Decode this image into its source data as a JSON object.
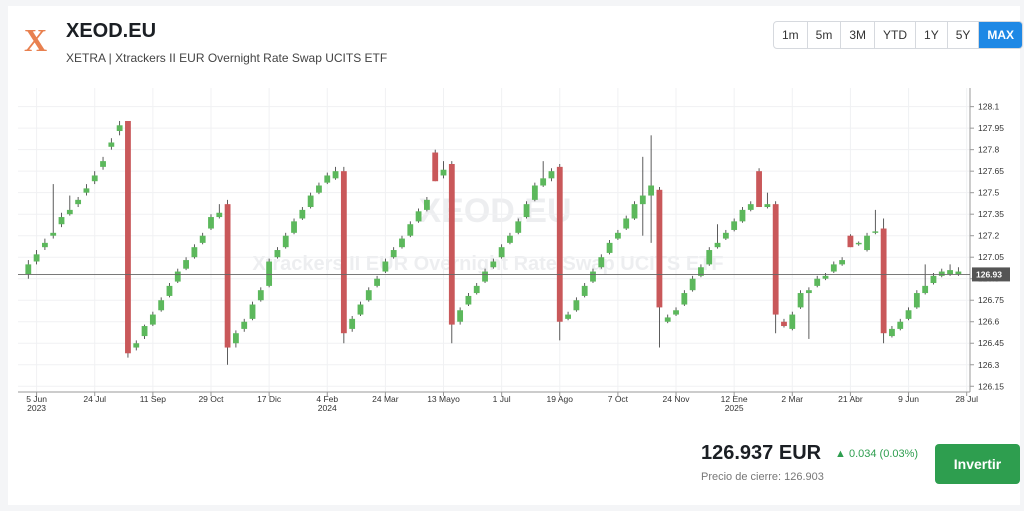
{
  "header": {
    "logo": "X",
    "ticker": "XEOD.EU",
    "exchange_line": "XETRA | Xtrackers II EUR Overnight Rate Swap UCITS ETF",
    "ranges": [
      "1m",
      "5m",
      "3M",
      "YTD",
      "1Y",
      "5Y",
      "MAX"
    ],
    "active_range": 6
  },
  "chart_data": {
    "type": "candlestick",
    "watermark_title": "XEOD.EU",
    "watermark_subtitle": "Xtrackers II EUR Overnight Rate Swap UCITS ETF",
    "up_color": "#5cb85c",
    "down_color": "#c9585a",
    "grid": true,
    "last_price": 126.93,
    "ylim": [
      126.11,
      128.23
    ],
    "yticks": [
      126.15,
      126.3,
      126.45,
      126.6,
      126.75,
      126.9,
      127.05,
      127.2,
      127.35,
      127.5,
      127.65,
      127.8,
      127.95,
      128.1
    ],
    "xlim": [
      -1.24,
      113.4
    ],
    "xticks": [
      {
        "value": 1,
        "label": "5 Jun",
        "year": "2023"
      },
      {
        "value": 8,
        "label": "24 Jul"
      },
      {
        "value": 15,
        "label": "11 Sep"
      },
      {
        "value": 22,
        "label": "29 Oct"
      },
      {
        "value": 29,
        "label": "17 Dic"
      },
      {
        "value": 36,
        "label": "4 Feb",
        "year": "2024"
      },
      {
        "value": 43,
        "label": "24 Mar"
      },
      {
        "value": 50,
        "label": "13 Mayo"
      },
      {
        "value": 57,
        "label": "1 Jul"
      },
      {
        "value": 64,
        "label": "19 Ago"
      },
      {
        "value": 71,
        "label": "7 Oct"
      },
      {
        "value": 78,
        "label": "24 Nov"
      },
      {
        "value": 85,
        "label": "12 Ene",
        "year": "2025"
      },
      {
        "value": 92,
        "label": "2 Mar"
      },
      {
        "value": 99,
        "label": "21 Abr"
      },
      {
        "value": 106,
        "label": "9 Jun"
      },
      {
        "value": 113,
        "label": "28 Jul"
      }
    ],
    "candles": [
      [
        126.93,
        127.03,
        126.9,
        127.0
      ],
      [
        127.02,
        127.1,
        127.0,
        127.07
      ],
      [
        127.12,
        127.18,
        127.1,
        127.15
      ],
      [
        127.2,
        127.56,
        127.18,
        127.22
      ],
      [
        127.28,
        127.36,
        127.26,
        127.33
      ],
      [
        127.35,
        127.48,
        127.34,
        127.38
      ],
      [
        127.42,
        127.47,
        127.4,
        127.45
      ],
      [
        127.5,
        127.56,
        127.48,
        127.53
      ],
      [
        127.58,
        127.65,
        127.56,
        127.62
      ],
      [
        127.68,
        127.75,
        127.66,
        127.72
      ],
      [
        127.82,
        127.88,
        127.8,
        127.85
      ],
      [
        127.93,
        128.0,
        127.9,
        127.97
      ],
      [
        128.0,
        128.0,
        126.35,
        126.38
      ],
      [
        126.42,
        126.47,
        126.4,
        126.45
      ],
      [
        126.5,
        126.58,
        126.48,
        126.57
      ],
      [
        126.58,
        126.67,
        126.57,
        126.65
      ],
      [
        126.68,
        126.77,
        126.67,
        126.75
      ],
      [
        126.78,
        126.87,
        126.77,
        126.85
      ],
      [
        126.88,
        126.97,
        126.87,
        126.95
      ],
      [
        126.97,
        127.05,
        126.96,
        127.03
      ],
      [
        127.05,
        127.14,
        127.04,
        127.12
      ],
      [
        127.15,
        127.22,
        127.14,
        127.2
      ],
      [
        127.25,
        127.35,
        127.24,
        127.33
      ],
      [
        127.33,
        127.42,
        127.32,
        127.36
      ],
      [
        127.42,
        127.45,
        126.3,
        126.42
      ],
      [
        126.45,
        126.54,
        126.42,
        126.52
      ],
      [
        126.55,
        126.62,
        126.53,
        126.6
      ],
      [
        126.62,
        126.74,
        126.61,
        126.72
      ],
      [
        126.75,
        126.84,
        126.74,
        126.82
      ],
      [
        126.85,
        127.04,
        126.84,
        127.02
      ],
      [
        127.05,
        127.12,
        127.04,
        127.1
      ],
      [
        127.12,
        127.22,
        127.11,
        127.2
      ],
      [
        127.22,
        127.32,
        127.21,
        127.3
      ],
      [
        127.32,
        127.4,
        127.31,
        127.38
      ],
      [
        127.4,
        127.5,
        127.39,
        127.48
      ],
      [
        127.5,
        127.57,
        127.49,
        127.55
      ],
      [
        127.57,
        127.64,
        127.56,
        127.62
      ],
      [
        127.6,
        127.68,
        127.59,
        127.65
      ],
      [
        127.65,
        127.68,
        126.45,
        126.52
      ],
      [
        126.55,
        126.64,
        126.53,
        126.62
      ],
      [
        126.65,
        126.74,
        126.64,
        126.72
      ],
      [
        126.75,
        126.84,
        126.74,
        126.82
      ],
      [
        126.85,
        126.92,
        126.84,
        126.9
      ],
      [
        126.95,
        127.04,
        126.94,
        127.02
      ],
      [
        127.05,
        127.12,
        127.04,
        127.1
      ],
      [
        127.12,
        127.2,
        127.11,
        127.18
      ],
      [
        127.2,
        127.3,
        127.19,
        127.28
      ],
      [
        127.3,
        127.39,
        127.29,
        127.37
      ],
      [
        127.38,
        127.47,
        127.37,
        127.45
      ],
      [
        127.78,
        127.8,
        127.58,
        127.58
      ],
      [
        127.62,
        127.72,
        127.6,
        127.66
      ],
      [
        127.7,
        127.72,
        126.45,
        126.58
      ],
      [
        126.6,
        126.7,
        126.58,
        126.68
      ],
      [
        126.72,
        126.8,
        126.71,
        126.78
      ],
      [
        126.8,
        126.87,
        126.79,
        126.85
      ],
      [
        126.88,
        126.97,
        126.87,
        126.95
      ],
      [
        126.98,
        127.04,
        126.97,
        127.02
      ],
      [
        127.05,
        127.14,
        127.04,
        127.12
      ],
      [
        127.15,
        127.22,
        127.14,
        127.2
      ],
      [
        127.22,
        127.32,
        127.21,
        127.3
      ],
      [
        127.33,
        127.44,
        127.32,
        127.42
      ],
      [
        127.45,
        127.57,
        127.44,
        127.55
      ],
      [
        127.55,
        127.72,
        127.54,
        127.6
      ],
      [
        127.6,
        127.67,
        127.58,
        127.65
      ],
      [
        127.68,
        127.7,
        126.47,
        126.6
      ],
      [
        126.62,
        126.67,
        126.61,
        126.65
      ],
      [
        126.68,
        126.77,
        126.67,
        126.75
      ],
      [
        126.78,
        126.87,
        126.77,
        126.85
      ],
      [
        126.88,
        126.97,
        126.87,
        126.95
      ],
      [
        126.98,
        127.07,
        126.97,
        127.05
      ],
      [
        127.08,
        127.17,
        127.07,
        127.15
      ],
      [
        127.18,
        127.24,
        127.17,
        127.22
      ],
      [
        127.25,
        127.34,
        127.24,
        127.32
      ],
      [
        127.32,
        127.44,
        127.31,
        127.42
      ],
      [
        127.42,
        127.75,
        127.2,
        127.48
      ],
      [
        127.48,
        127.9,
        127.15,
        127.55
      ],
      [
        127.52,
        127.54,
        126.42,
        126.7
      ],
      [
        126.6,
        126.65,
        126.59,
        126.63
      ],
      [
        126.65,
        126.7,
        126.64,
        126.68
      ],
      [
        126.72,
        126.82,
        126.71,
        126.8
      ],
      [
        126.82,
        126.92,
        126.81,
        126.9
      ],
      [
        126.92,
        127.0,
        126.91,
        126.98
      ],
      [
        127.0,
        127.12,
        126.99,
        127.1
      ],
      [
        127.12,
        127.28,
        127.11,
        127.15
      ],
      [
        127.18,
        127.24,
        127.17,
        127.22
      ],
      [
        127.24,
        127.32,
        127.23,
        127.3
      ],
      [
        127.3,
        127.4,
        127.29,
        127.38
      ],
      [
        127.38,
        127.44,
        127.37,
        127.42
      ],
      [
        127.65,
        127.67,
        127.4,
        127.4
      ],
      [
        127.4,
        127.5,
        127.39,
        127.42
      ],
      [
        127.42,
        127.44,
        126.52,
        126.65
      ],
      [
        126.6,
        126.62,
        126.56,
        126.57
      ],
      [
        126.55,
        126.67,
        126.54,
        126.65
      ],
      [
        126.7,
        126.82,
        126.69,
        126.8
      ],
      [
        126.8,
        126.84,
        126.48,
        126.82
      ],
      [
        126.85,
        126.92,
        126.84,
        126.9
      ],
      [
        126.9,
        126.94,
        126.89,
        126.92
      ],
      [
        126.95,
        127.02,
        126.94,
        127.0
      ],
      [
        127.0,
        127.05,
        126.99,
        127.03
      ],
      [
        127.2,
        127.21,
        127.12,
        127.12
      ],
      [
        127.14,
        127.16,
        127.13,
        127.15
      ],
      [
        127.1,
        127.22,
        127.09,
        127.2
      ],
      [
        127.22,
        127.38,
        127.21,
        127.23
      ],
      [
        127.25,
        127.32,
        126.45,
        126.52
      ],
      [
        126.5,
        126.57,
        126.49,
        126.55
      ],
      [
        126.55,
        126.62,
        126.54,
        126.6
      ],
      [
        126.62,
        126.7,
        126.61,
        126.68
      ],
      [
        126.7,
        126.82,
        126.69,
        126.8
      ],
      [
        126.8,
        127.0,
        126.79,
        126.85
      ],
      [
        126.87,
        126.94,
        126.86,
        126.92
      ],
      [
        126.92,
        126.97,
        126.91,
        126.95
      ],
      [
        126.93,
        127.0,
        126.92,
        126.96
      ],
      [
        126.93,
        126.98,
        126.92,
        126.95
      ]
    ]
  },
  "quote": {
    "price": "126.937 EUR",
    "change": "0.034 (0.03%)",
    "close_label": "Precio de cierre: 126.903",
    "button": "Invertir"
  }
}
